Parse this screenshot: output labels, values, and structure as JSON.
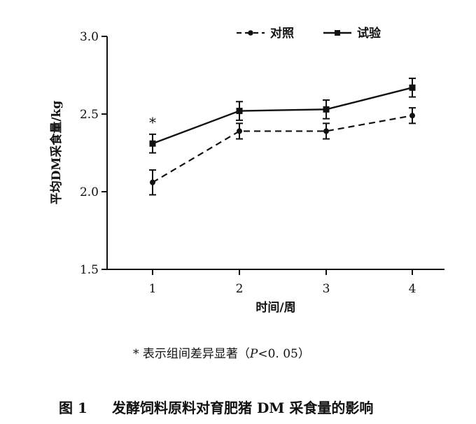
{
  "chart_data": {
    "type": "line",
    "categories": [
      "1",
      "2",
      "3",
      "4"
    ],
    "xlabel": "时间/周",
    "ylabel": "平均DM采食量/kg",
    "ylim": [
      1.5,
      3.0
    ],
    "yticks": [
      "1.5",
      "2.0",
      "2.5",
      "3.0"
    ],
    "series": [
      {
        "name": "对照",
        "values": [
          2.06,
          2.39,
          2.39,
          2.49
        ],
        "errors": [
          0.08,
          0.05,
          0.05,
          0.05
        ],
        "line_style": "dashed",
        "marker": "circle"
      },
      {
        "name": "试验",
        "values": [
          2.31,
          2.52,
          2.53,
          2.67
        ],
        "errors": [
          0.06,
          0.06,
          0.06,
          0.06
        ],
        "line_style": "solid",
        "marker": "square"
      }
    ],
    "annotations": [
      {
        "text": "*",
        "category": "1"
      }
    ],
    "legend_position": "top-right",
    "grid": false
  },
  "note": {
    "prefix": "* 表示组间差异显著（",
    "italic": "P",
    "suffix": "<0. 05）"
  },
  "caption": {
    "label": "图 1",
    "title": "发酵饲料原料对育肥猪 DM 采食量的影响"
  },
  "colors": {
    "ink": "#111111",
    "background": "#ffffff"
  }
}
